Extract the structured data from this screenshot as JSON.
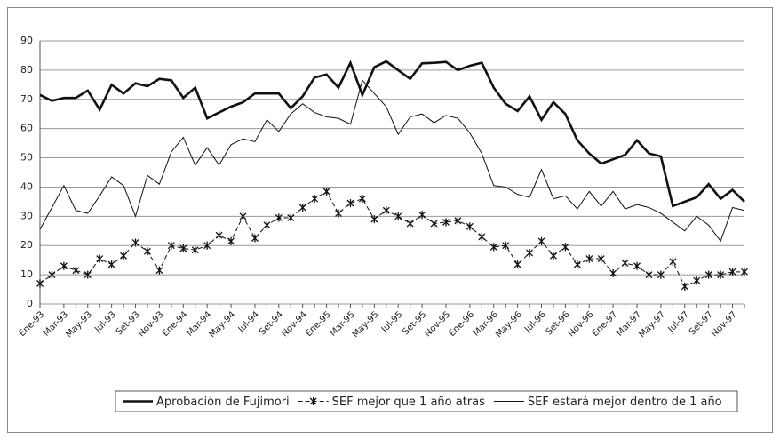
{
  "chart_data": {
    "type": "line",
    "categories": [
      "Ene-93",
      null,
      "Mar-93",
      null,
      "May-93",
      null,
      "Jul-93",
      null,
      "Set-93",
      null,
      "Nov-93",
      null,
      "Ene-94",
      null,
      "Mar-94",
      null,
      "May-94",
      null,
      "Jul-94",
      null,
      "Set-94",
      null,
      "Nov-94",
      null,
      "Ene-95",
      null,
      "Mar-95",
      null,
      "May-95",
      null,
      "Jul-95",
      null,
      "Set-95",
      null,
      "Nov-95",
      null,
      "Ene-96",
      null,
      "Mar-96",
      null,
      "May-96",
      null,
      "Jul-96",
      null,
      "Set-96",
      null,
      "Nov-96",
      null,
      "Ene-97",
      null,
      "Mar-97",
      null,
      "May-97",
      null,
      "Jul-97",
      null,
      "Set-97",
      null,
      "Nov-97",
      null
    ],
    "series": [
      {
        "name": "Aprobación de Fujimori",
        "color": "#111111",
        "width": 2.6,
        "dashed": false,
        "marker": "none",
        "values": [
          71.5,
          69.5,
          70.5,
          70.5,
          73,
          66.5,
          75,
          72,
          75.5,
          74.5,
          77,
          76.5,
          70.5,
          74,
          63.5,
          65.5,
          67.5,
          69,
          72,
          72,
          72,
          67,
          71,
          77.5,
          78.5,
          74,
          82.5,
          71.5,
          81,
          83,
          80,
          77,
          82.3,
          82.5,
          82.8,
          80,
          81.5,
          82.5,
          74,
          68.5,
          66,
          71,
          63,
          69,
          65,
          56,
          51.5,
          48,
          49.5,
          51,
          56,
          51.5,
          50.5,
          33.5,
          35,
          36.5,
          41,
          36,
          39,
          35
        ]
      },
      {
        "name": "SEF mejor que 1 año atras",
        "color": "#111111",
        "width": 1,
        "dashed": true,
        "marker": "star",
        "values": [
          7,
          10,
          13,
          11.5,
          10,
          15.5,
          13.5,
          16.5,
          21,
          18,
          11.5,
          20,
          19,
          18.5,
          20,
          23.5,
          21.5,
          30,
          22.5,
          27,
          29.5,
          29.5,
          33,
          36,
          38.5,
          31,
          34.5,
          36,
          29,
          32,
          30,
          27.5,
          30.5,
          27.5,
          28,
          28.5,
          26.5,
          23,
          19.5,
          20,
          13.5,
          17.5,
          21.5,
          16.5,
          19.5,
          13.5,
          15.5,
          15.5,
          10.5,
          14,
          13,
          10,
          10,
          14.5,
          6,
          8,
          10,
          10,
          11,
          11
        ]
      },
      {
        "name": "SEF estará mejor dentro de 1 año",
        "color": "#111111",
        "width": 1,
        "dashed": false,
        "marker": "none",
        "values": [
          25.5,
          33,
          40.5,
          32,
          31,
          37,
          43.5,
          40.5,
          30,
          44,
          41,
          52,
          57,
          47.5,
          53.5,
          47.5,
          54.5,
          56.5,
          55.5,
          63,
          59,
          65,
          68.5,
          65.5,
          64,
          63.5,
          61.5,
          76.5,
          72,
          67.5,
          58,
          64,
          65,
          62,
          64.5,
          63.5,
          58.5,
          51.5,
          40.5,
          40,
          37.5,
          36.5,
          46,
          36,
          37,
          32.5,
          38.5,
          33.5,
          38.5,
          32.5,
          34,
          33,
          31,
          28,
          25,
          30,
          27,
          21.5,
          33,
          32
        ]
      }
    ],
    "ylim": [
      0,
      90
    ],
    "yticks": [
      0,
      10,
      20,
      30,
      40,
      50,
      60,
      70,
      80,
      90
    ],
    "grid": true,
    "legend": "bottom"
  }
}
